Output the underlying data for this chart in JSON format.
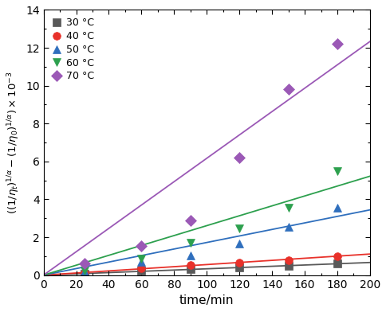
{
  "title": "",
  "xlabel": "time/min",
  "xlim": [
    0,
    200
  ],
  "ylim": [
    0,
    14
  ],
  "xticks": [
    0,
    20,
    40,
    60,
    80,
    100,
    120,
    140,
    160,
    180,
    200
  ],
  "yticks": [
    0,
    2,
    4,
    6,
    8,
    10,
    12,
    14
  ],
  "series": [
    {
      "label": "30 °C",
      "color": "#595959",
      "marker": "s",
      "x_data": [
        25,
        60,
        90,
        120,
        150,
        180
      ],
      "y_data": [
        0.07,
        0.22,
        0.3,
        0.42,
        0.5,
        0.6
      ],
      "fit_slope": 0.00333
    },
    {
      "label": "40 °C",
      "color": "#e8312a",
      "marker": "o",
      "x_data": [
        25,
        60,
        90,
        120,
        150,
        180
      ],
      "y_data": [
        0.1,
        0.38,
        0.52,
        0.65,
        0.8,
        1.0
      ],
      "fit_slope": 0.00556
    },
    {
      "label": "50 °C",
      "color": "#2f6fbd",
      "marker": "^",
      "x_data": [
        25,
        60,
        90,
        120,
        150,
        180
      ],
      "y_data": [
        0.18,
        0.68,
        1.05,
        1.65,
        2.55,
        3.55
      ],
      "fit_slope": 0.01722
    },
    {
      "label": "60 °C",
      "color": "#2da04e",
      "marker": "v",
      "x_data": [
        25,
        60,
        90,
        120,
        150,
        180
      ],
      "y_data": [
        0.25,
        0.85,
        1.7,
        2.45,
        3.55,
        5.5
      ],
      "fit_slope": 0.02611
    },
    {
      "label": "70 °C",
      "color": "#9b59b6",
      "marker": "D",
      "x_data": [
        25,
        60,
        90,
        120,
        150,
        180
      ],
      "y_data": [
        0.6,
        1.55,
        2.9,
        6.2,
        9.8,
        12.2
      ],
      "fit_slope": 0.06167
    }
  ],
  "marker_size": 7,
  "line_width": 1.3,
  "legend_loc": "upper left"
}
